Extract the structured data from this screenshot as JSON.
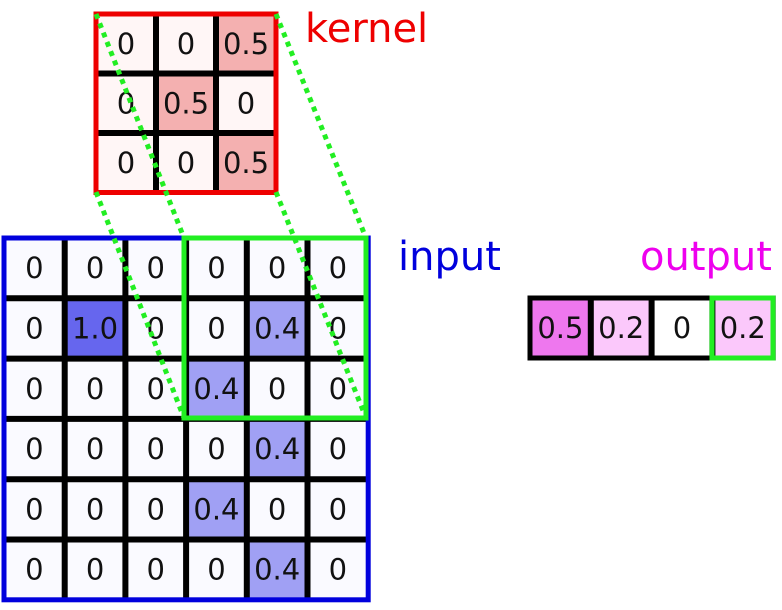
{
  "kernel": {
    "label": "kernel",
    "label_color": "#ee0000",
    "border_color": "#ee0000",
    "values": [
      [
        "0",
        "0",
        "0.5"
      ],
      [
        "0",
        "0.5",
        "0"
      ],
      [
        "0",
        "0",
        "0.5"
      ]
    ]
  },
  "input": {
    "label": "input",
    "label_color": "#0000dd",
    "border_color": "#0000dd",
    "values": [
      [
        "0",
        "0",
        "0",
        "0",
        "0",
        "0"
      ],
      [
        "0",
        "1.0",
        "0",
        "0",
        "0.4",
        "0"
      ],
      [
        "0",
        "0",
        "0",
        "0.4",
        "0",
        "0"
      ],
      [
        "0",
        "0",
        "0",
        "0",
        "0.4",
        "0"
      ],
      [
        "0",
        "0",
        "0",
        "0.4",
        "0",
        "0"
      ],
      [
        "0",
        "0",
        "0",
        "0",
        "0.4",
        "0"
      ]
    ]
  },
  "output": {
    "label": "output",
    "label_color": "#ee00ee",
    "values": [
      "0.5",
      "0.2",
      "0",
      "0.2"
    ]
  },
  "highlight_color": "#22ee22"
}
